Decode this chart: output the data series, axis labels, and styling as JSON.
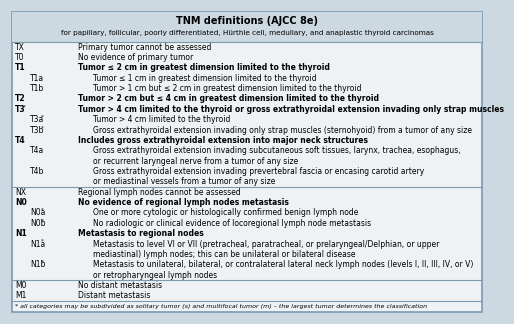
{
  "title": "TNM definitions (AJCC 8e)",
  "subtitle": "for papillary, follicular, poorly differentiated, Hürthle cell, medullary, and anaplastic thyroid carcinomas",
  "bg_color": "#cdd9e0",
  "header_bg": "#cdd9e0",
  "table_bg": "#eef2f4",
  "border_color": "#7a9ab0",
  "rows": [
    {
      "code": "TX",
      "indent": 0,
      "bold_code": false,
      "text": "Primary tumor cannot be assessed",
      "section": "T",
      "asterisk": false
    },
    {
      "code": "T0",
      "indent": 0,
      "bold_code": false,
      "text": "No evidence of primary tumor",
      "section": "T",
      "asterisk": false
    },
    {
      "code": "T1",
      "indent": 0,
      "bold_code": true,
      "text": "Tumor ≤ 2 cm in greatest dimension limited to the thyroid",
      "section": "T",
      "asterisk": false
    },
    {
      "code": "T1a",
      "indent": 1,
      "bold_code": false,
      "text": "Tumor ≤ 1 cm in greatest dimension limited to the thyroid",
      "section": "T",
      "asterisk": false
    },
    {
      "code": "T1b",
      "indent": 1,
      "bold_code": false,
      "text": "Tumor > 1 cm but ≤ 2 cm in greatest dimension limited to the thyroid",
      "section": "T",
      "asterisk": false
    },
    {
      "code": "T2",
      "indent": 0,
      "bold_code": true,
      "text": "Tumor > 2 cm but ≤ 4 cm in greatest dimension limited to the thyroid",
      "section": "T",
      "asterisk": false
    },
    {
      "code": "T3",
      "indent": 0,
      "bold_code": true,
      "text": "Tumor > 4 cm limited to the thyroid or gross extrathyroidal extension invading only strap muscles",
      "section": "T",
      "asterisk": true
    },
    {
      "code": "T3a",
      "indent": 1,
      "bold_code": false,
      "text": "Tumor > 4 cm limited to the thyroid",
      "section": "T",
      "asterisk": true
    },
    {
      "code": "T3b",
      "indent": 1,
      "bold_code": false,
      "text": "Gross extrathyroidal extension invading only strap muscles (sternohyoid) from a tumor of any size",
      "section": "T",
      "asterisk": true
    },
    {
      "code": "T4",
      "indent": 0,
      "bold_code": true,
      "text": "Includes gross extrathyroidal extension into major neck structures",
      "section": "T",
      "asterisk": false
    },
    {
      "code": "T4a_1",
      "indent": 1,
      "bold_code": false,
      "text": "Gross extrathyroidal extension invading subcutaneous soft tissues, larynx, trachea, esophagus,",
      "section": "T",
      "asterisk": false,
      "code_display": "T4a",
      "show_code": true
    },
    {
      "code": "T4a_2",
      "indent": 1,
      "bold_code": false,
      "text": "or recurrent laryngeal nerve from a tumor of any size",
      "section": "T",
      "asterisk": false,
      "code_display": "",
      "show_code": false
    },
    {
      "code": "T4b_1",
      "indent": 1,
      "bold_code": false,
      "text": "Gross extrathyroidal extension invading prevertebral fascia or encasing carotid artery",
      "section": "T",
      "asterisk": false,
      "code_display": "T4b",
      "show_code": true
    },
    {
      "code": "T4b_2",
      "indent": 1,
      "bold_code": false,
      "text": "or mediastinal vessels from a tumor of any size",
      "section": "T",
      "asterisk": false,
      "code_display": "",
      "show_code": false
    },
    {
      "code": "NX",
      "indent": 0,
      "bold_code": false,
      "text": "Regional lymph nodes cannot be assessed",
      "section": "N",
      "asterisk": false
    },
    {
      "code": "N0",
      "indent": 0,
      "bold_code": true,
      "text": "No evidence of regional lymph nodes metastasis",
      "section": "N",
      "asterisk": false
    },
    {
      "code": "N0a",
      "indent": 1,
      "bold_code": false,
      "text": "One or more cytologic or histologically confirmed benign lymph node",
      "section": "N",
      "asterisk": true
    },
    {
      "code": "N0b",
      "indent": 1,
      "bold_code": false,
      "text": "No radiologic or clinical evidence of locoregional lymph node metastasis",
      "section": "N",
      "asterisk": true
    },
    {
      "code": "N1",
      "indent": 0,
      "bold_code": true,
      "text": "Metastasis to regional nodes",
      "section": "N",
      "asterisk": true
    },
    {
      "code": "N1a_1",
      "indent": 1,
      "bold_code": false,
      "text": "Metastasis to level VI or VII (pretracheal, paratracheal, or prelaryngeal/Delphian, or upper",
      "section": "N",
      "asterisk": true,
      "code_display": "N1a",
      "show_code": true
    },
    {
      "code": "N1a_2",
      "indent": 1,
      "bold_code": false,
      "text": "mediastinal) lymph nodes; this can be unilateral or bilateral disease",
      "section": "N",
      "asterisk": false,
      "code_display": "",
      "show_code": false
    },
    {
      "code": "N1b_1",
      "indent": 1,
      "bold_code": false,
      "text": "Metastasis to unilateral, bilateral, or contralateral lateral neck lymph nodes (levels I, II, III, IV, or V)",
      "section": "N",
      "asterisk": true,
      "code_display": "N1b",
      "show_code": true
    },
    {
      "code": "N1b_2",
      "indent": 1,
      "bold_code": false,
      "text": "or retropharyngeal lymph nodes",
      "section": "N",
      "asterisk": false,
      "code_display": "",
      "show_code": false
    },
    {
      "code": "M0",
      "indent": 0,
      "bold_code": false,
      "text": "No distant metastasis",
      "section": "M",
      "asterisk": false
    },
    {
      "code": "M1",
      "indent": 0,
      "bold_code": false,
      "text": "Distant metastasis",
      "section": "M",
      "asterisk": false
    }
  ],
  "footnote": "* all categories may be subdivided as solitary tumor (s) and multifocal tumor (m) – the largest tumor determines the classification"
}
